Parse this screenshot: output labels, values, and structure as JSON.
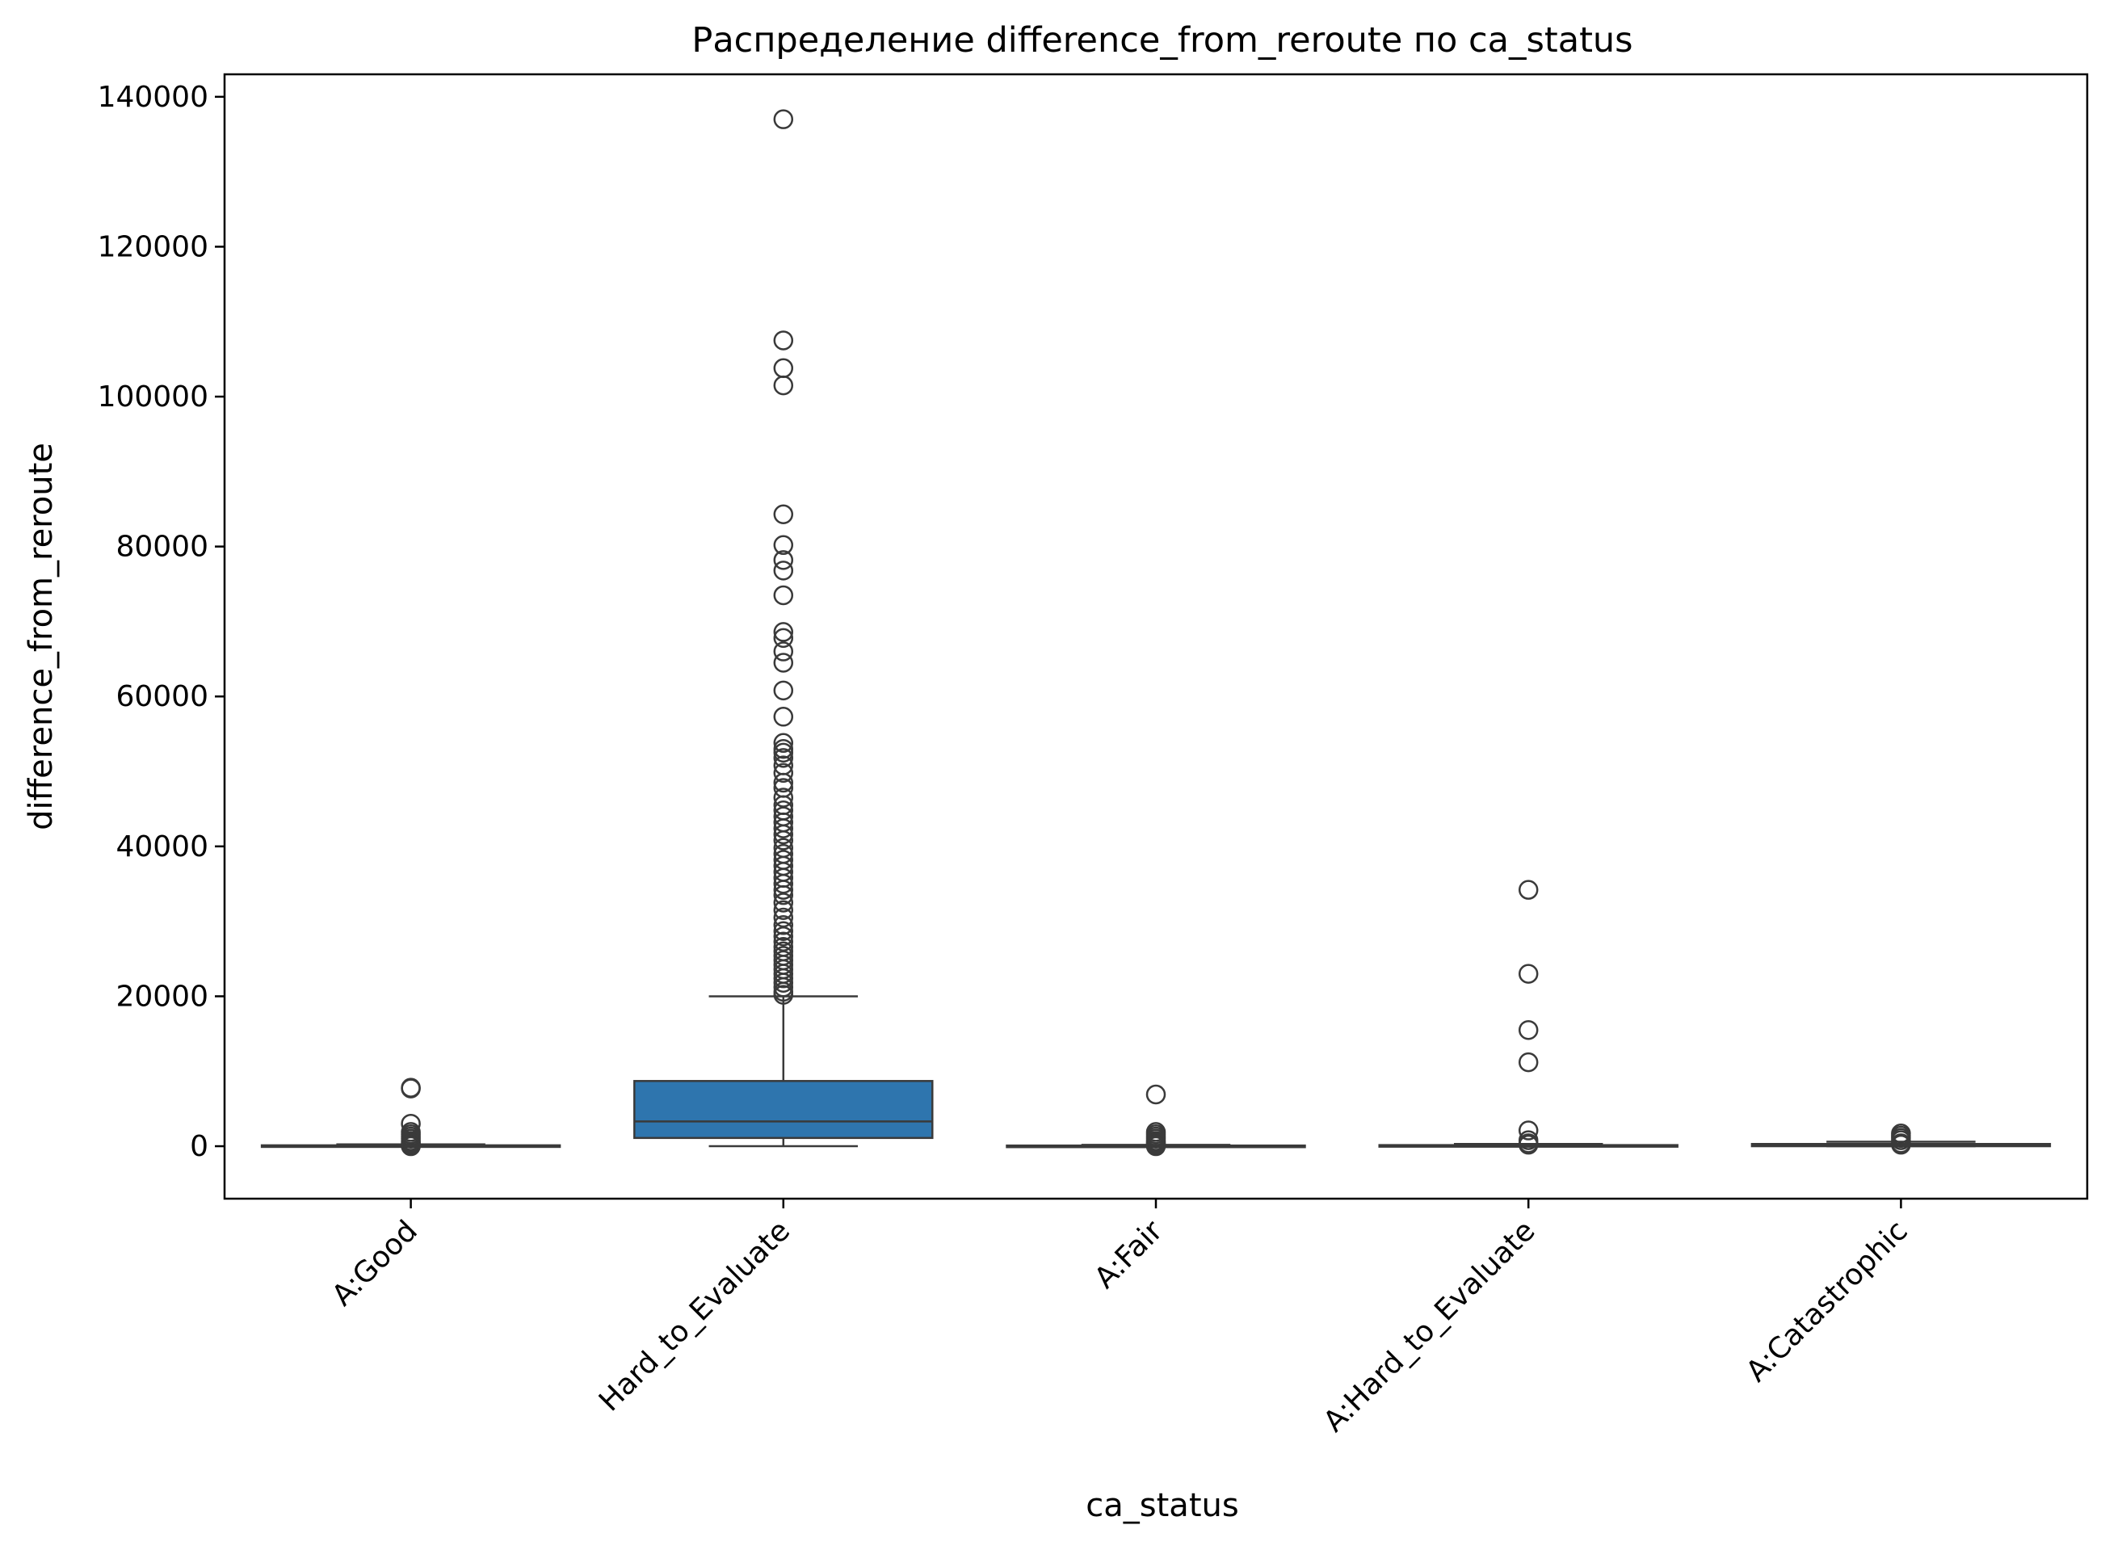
{
  "chart_data": {
    "type": "box",
    "title": "Распределение difference_from_reroute по ca_status",
    "xlabel": "ca_status",
    "ylabel": "difference_from_reroute",
    "ylim": [
      -7000,
      143000
    ],
    "yticks": [
      0,
      20000,
      40000,
      60000,
      80000,
      100000,
      120000,
      140000
    ],
    "ytick_labels": [
      "0",
      "20000",
      "40000",
      "60000",
      "80000",
      "100000",
      "120000",
      "140000"
    ],
    "categories": [
      "A:Good",
      "Hard_to_Evaluate",
      "A:Fair",
      "A:Hard_to_Evaluate",
      "A:Catastrophic"
    ],
    "grid": false,
    "legend": "none",
    "colors": {
      "box_fill": "#2e75ae",
      "box_fill_flat": "#1f6fae",
      "line": "#3a3a3a"
    },
    "boxes": [
      {
        "category": "A:Good",
        "whisker_low": 0,
        "q1": 0,
        "median": 30,
        "q3": 120,
        "whisker_high": 250,
        "outliers": [
          7800,
          7700,
          3000,
          1900,
          1600,
          1300,
          1000,
          700,
          500,
          300,
          200,
          100,
          50,
          0
        ]
      },
      {
        "category": "Hard_to_Evaluate",
        "whisker_low": 0,
        "q1": 1100,
        "median": 3300,
        "q3": 8700,
        "whisker_high": 20000,
        "outliers": [
          137000,
          107500,
          103800,
          101500,
          84300,
          80200,
          78200,
          76800,
          73500,
          68600,
          67800,
          66000,
          64500,
          60800,
          57300,
          53800,
          53000,
          52500,
          51800,
          50800,
          49800,
          48500,
          47800,
          46500,
          45500,
          44800,
          44000,
          43200,
          42400,
          41600,
          40800,
          39800,
          39000,
          38200,
          37400,
          36600,
          35800,
          35000,
          34200,
          33500,
          32500,
          31500,
          30500,
          29500,
          28700,
          28000,
          27300,
          26600,
          26000,
          25400,
          24800,
          24200,
          23600,
          23000,
          22400,
          21800,
          21200,
          20600,
          20200
        ]
      },
      {
        "category": "A:Fair",
        "whisker_low": 0,
        "q1": 0,
        "median": 20,
        "q3": 90,
        "whisker_high": 180,
        "outliers": [
          6900,
          1900,
          1600,
          1300,
          1000,
          700,
          500,
          300,
          200,
          100,
          0
        ]
      },
      {
        "category": "A:Hard_to_Evaluate",
        "whisker_low": 0,
        "q1": 0,
        "median": 50,
        "q3": 150,
        "whisker_high": 300,
        "outliers": [
          34200,
          23000,
          15500,
          11200,
          2100,
          800,
          400,
          200
        ]
      },
      {
        "category": "A:Catastrophic",
        "whisker_low": 0,
        "q1": 0,
        "median": 80,
        "q3": 300,
        "whisker_high": 600,
        "outliers": [
          1700,
          1400,
          1100,
          800,
          400,
          200
        ]
      }
    ]
  }
}
